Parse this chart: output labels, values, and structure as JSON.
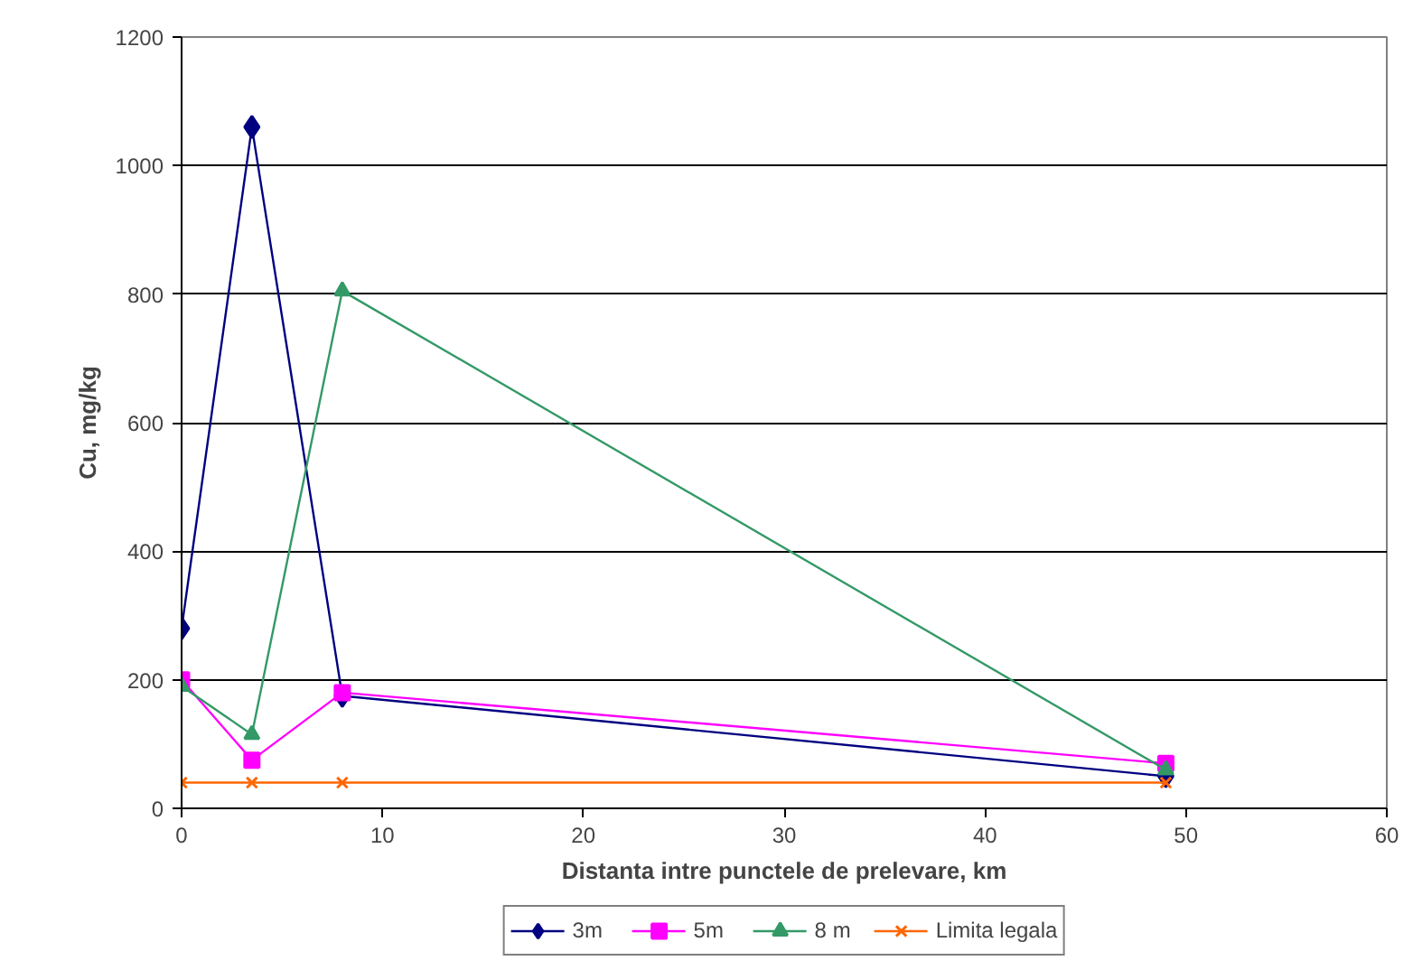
{
  "chart_data": {
    "type": "line",
    "xlabel": "Distanta intre punctele de prelevare, km",
    "ylabel": "Cu, mg/kg",
    "xlim": [
      0,
      60
    ],
    "xticks": [
      0,
      10,
      20,
      30,
      40,
      50,
      60
    ],
    "ylim": [
      0,
      1200
    ],
    "yticks": [
      0,
      200,
      400,
      600,
      800,
      1000,
      1200
    ],
    "grid": "y",
    "legend": "bottom",
    "line_style": "solid",
    "series": [
      {
        "name": "3m",
        "color": "#000080",
        "marker": "diamond",
        "x": [
          0,
          3.5,
          8,
          49
        ],
        "values": [
          280,
          1060,
          175,
          50
        ]
      },
      {
        "name": "5m",
        "color": "#ff00ff",
        "marker": "square",
        "x": [
          0,
          3.5,
          8,
          49
        ],
        "values": [
          200,
          75,
          180,
          70
        ]
      },
      {
        "name": "8 m",
        "color": "#339966",
        "marker": "triangle",
        "x": [
          0,
          3.5,
          8,
          49
        ],
        "values": [
          190,
          115,
          805,
          60
        ]
      },
      {
        "name": "Limita legala",
        "color": "#ff6600",
        "marker": "cross",
        "x": [
          0,
          3.5,
          8,
          49
        ],
        "values": [
          40,
          40,
          40,
          40
        ]
      }
    ]
  }
}
